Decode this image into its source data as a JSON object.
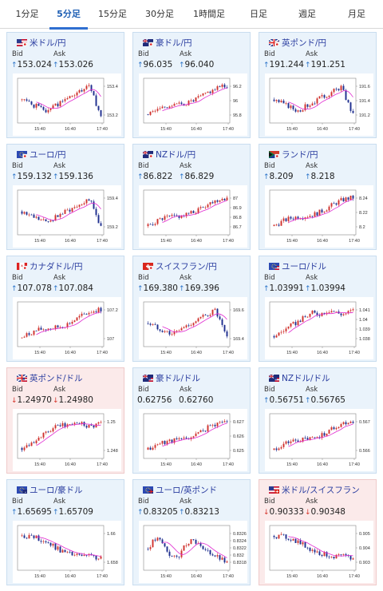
{
  "tabs": [
    {
      "label": "1分足",
      "active": false
    },
    {
      "label": "5分足",
      "active": true
    },
    {
      "label": "15分足",
      "active": false
    },
    {
      "label": "30分足",
      "active": false
    },
    {
      "label": "1時間足",
      "active": false
    },
    {
      "label": "日足",
      "active": false
    },
    {
      "label": "週足",
      "active": false
    },
    {
      "label": "月足",
      "active": false
    }
  ],
  "bid_label": "Bid",
  "ask_label": "Ask",
  "cards": [
    {
      "pair": "米ドル/円",
      "flag": "us-jp",
      "bid": "153.024",
      "ask": "153.026",
      "bid_dir": "up",
      "ask_dir": "up",
      "bg": "blue",
      "chart": {
        "type": "candlestick",
        "y_ticks": [
          "153.4",
          "153.2"
        ],
        "x_ticks": [
          "15:40",
          "16:40",
          "17:40"
        ],
        "shape": "dip_rise_fall",
        "seed": 1
      }
    },
    {
      "pair": "豪ドル/円",
      "flag": "au-jp",
      "bid": "96.035",
      "ask": "96.040",
      "bid_dir": "up",
      "ask_dir": "up",
      "bg": "blue",
      "chart": {
        "type": "candlestick",
        "y_ticks": [
          "96.2",
          "96",
          "95.8"
        ],
        "x_ticks": [
          "15:40",
          "16:40",
          "17:40"
        ],
        "shape": "rise",
        "seed": 2
      }
    },
    {
      "pair": "英ポンド/円",
      "flag": "gb-jp",
      "bid": "191.244",
      "ask": "191.251",
      "bid_dir": "up",
      "ask_dir": "up",
      "bg": "blue",
      "chart": {
        "type": "candlestick",
        "y_ticks": [
          "191.6",
          "191.4",
          "191.2"
        ],
        "x_ticks": [
          "15:40",
          "16:40",
          "17:40"
        ],
        "shape": "dip_rise_fall",
        "seed": 3
      }
    },
    {
      "pair": "ユーロ/円",
      "flag": "eu-jp",
      "bid": "159.132",
      "ask": "159.136",
      "bid_dir": "up",
      "ask_dir": "up",
      "bg": "blue",
      "chart": {
        "type": "candlestick",
        "y_ticks": [
          "159.4",
          "159.2"
        ],
        "x_ticks": [
          "15:40",
          "16:40",
          "17:40"
        ],
        "shape": "dip_rise_fall",
        "seed": 4
      }
    },
    {
      "pair": "NZドル/円",
      "flag": "nz-jp",
      "bid": "86.822",
      "ask": "86.829",
      "bid_dir": "up",
      "ask_dir": "up",
      "bg": "blue",
      "chart": {
        "type": "candlestick",
        "y_ticks": [
          "87",
          "86.9",
          "86.8",
          "86.7"
        ],
        "x_ticks": [
          "15:40",
          "16:40",
          "17:40"
        ],
        "shape": "rise",
        "seed": 5
      }
    },
    {
      "pair": "ランド/円",
      "flag": "za-jp",
      "bid": "8.209",
      "ask": "8.218",
      "bid_dir": "up",
      "ask_dir": "up",
      "bg": "blue",
      "chart": {
        "type": "candlestick",
        "y_ticks": [
          "8.24",
          "8.22",
          "8.2"
        ],
        "x_ticks": [
          "15:40",
          "16:40",
          "17:40"
        ],
        "shape": "rise",
        "seed": 6
      }
    },
    {
      "pair": "カナダドル/円",
      "flag": "ca-jp",
      "bid": "107.078",
      "ask": "107.084",
      "bid_dir": "up",
      "ask_dir": "up",
      "bg": "blue",
      "chart": {
        "type": "candlestick",
        "y_ticks": [
          "107.2",
          "107"
        ],
        "x_ticks": [
          "15:40",
          "16:40",
          "17:40"
        ],
        "shape": "rise",
        "seed": 7
      }
    },
    {
      "pair": "スイスフラン/円",
      "flag": "ch-jp",
      "bid": "169.380",
      "ask": "169.396",
      "bid_dir": "up",
      "ask_dir": "up",
      "bg": "blue",
      "chart": {
        "type": "candlestick",
        "y_ticks": [
          "169.6",
          "169.4"
        ],
        "x_ticks": [
          "15:40",
          "16:40",
          "17:40"
        ],
        "shape": "dip_rise_fall",
        "seed": 8
      }
    },
    {
      "pair": "ユーロ/ドル",
      "flag": "eu-us",
      "bid": "1.03991",
      "ask": "1.03994",
      "bid_dir": "up",
      "ask_dir": "up",
      "bg": "blue",
      "chart": {
        "type": "candlestick",
        "y_ticks": [
          "1.041",
          "1.04",
          "1.039",
          "1.038"
        ],
        "x_ticks": [
          "15:40",
          "16:40",
          "17:40"
        ],
        "shape": "rise_plateau",
        "seed": 9
      }
    },
    {
      "pair": "英ポンド/ドル",
      "flag": "gb-us",
      "bid": "1.24970",
      "ask": "1.24980",
      "bid_dir": "down",
      "ask_dir": "down",
      "bg": "pink",
      "chart": {
        "type": "candlestick",
        "y_ticks": [
          "1.25",
          "1.248"
        ],
        "x_ticks": [
          "15:40",
          "16:40",
          "17:40"
        ],
        "shape": "rise_plateau",
        "seed": 10
      }
    },
    {
      "pair": "豪ドル/ドル",
      "flag": "au-us",
      "bid": "0.62756",
      "ask": "0.62760",
      "bid_dir": "none",
      "ask_dir": "none",
      "bg": "blue",
      "chart": {
        "type": "candlestick",
        "y_ticks": [
          "0.627",
          "0.626",
          "0.625"
        ],
        "x_ticks": [
          "15:40",
          "16:40",
          "17:40"
        ],
        "shape": "rise",
        "seed": 11
      }
    },
    {
      "pair": "NZドル/ドル",
      "flag": "nz-us",
      "bid": "0.56751",
      "ask": "0.56765",
      "bid_dir": "up",
      "ask_dir": "up",
      "bg": "blue",
      "chart": {
        "type": "candlestick",
        "y_ticks": [
          "0.567",
          "0.566"
        ],
        "x_ticks": [
          "15:40",
          "16:40",
          "17:40"
        ],
        "shape": "rise",
        "seed": 12
      }
    },
    {
      "pair": "ユーロ/豪ドル",
      "flag": "eu-au",
      "bid": "1.65695",
      "ask": "1.65709",
      "bid_dir": "up",
      "ask_dir": "up",
      "bg": "blue",
      "chart": {
        "type": "candlestick",
        "y_ticks": [
          "1.66",
          "1.658"
        ],
        "x_ticks": [
          "15:40",
          "16:40",
          "17:40"
        ],
        "shape": "fall",
        "seed": 13
      }
    },
    {
      "pair": "ユーロ/英ポンド",
      "flag": "eu-gb",
      "bid": "0.83205",
      "ask": "0.83213",
      "bid_dir": "up",
      "ask_dir": "up",
      "bg": "blue",
      "chart": {
        "type": "candlestick",
        "y_ticks": [
          "0.8326",
          "0.8324",
          "0.8322",
          "0.832",
          "0.8318"
        ],
        "x_ticks": [
          "15:40",
          "16:40",
          "17:40"
        ],
        "shape": "range_fall",
        "seed": 14
      }
    },
    {
      "pair": "米ドル/スイスフラン",
      "flag": "us-ch",
      "bid": "0.90333",
      "ask": "0.90348",
      "bid_dir": "down",
      "ask_dir": "down",
      "bg": "pink",
      "chart": {
        "type": "candlestick",
        "y_ticks": [
          "0.905",
          "0.904",
          "0.903"
        ],
        "x_ticks": [
          "15:40",
          "16:40",
          "17:40"
        ],
        "shape": "fall",
        "seed": 15
      }
    }
  ]
}
